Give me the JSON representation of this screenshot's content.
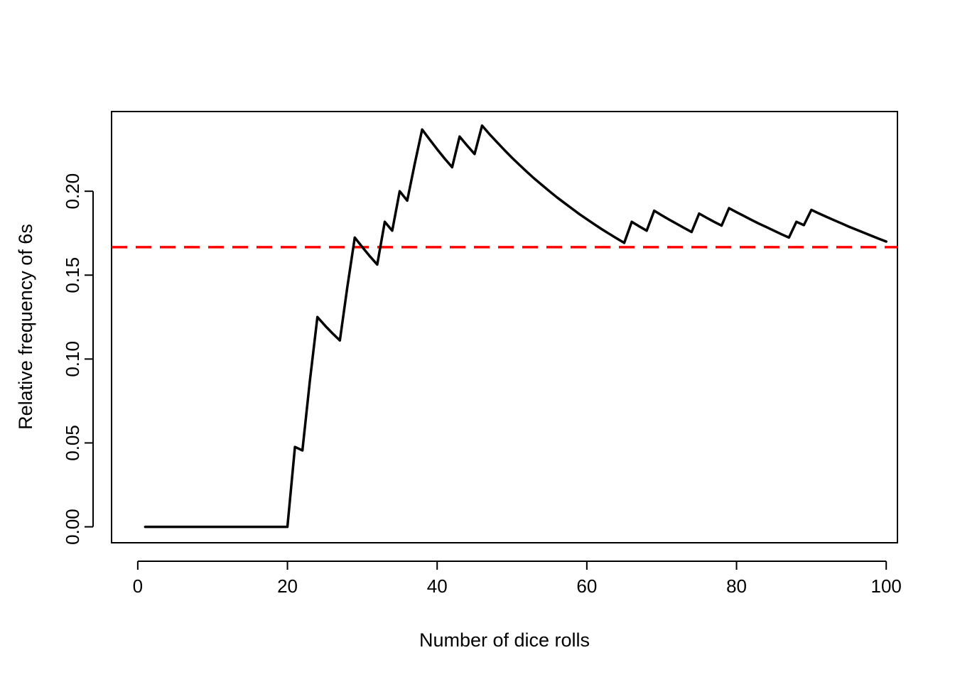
{
  "chart_data": {
    "type": "line",
    "title": "",
    "xlabel": "Number of dice rolls",
    "ylabel": "Relative frequency of 6s",
    "xlim": [
      -3.5,
      101.5
    ],
    "ylim": [
      -0.0095,
      0.2475
    ],
    "x_ticks": [
      0,
      20,
      40,
      60,
      80,
      100
    ],
    "x_tick_labels": [
      "0",
      "20",
      "40",
      "60",
      "80",
      "100"
    ],
    "y_ticks": [
      0.0,
      0.05,
      0.1,
      0.15,
      0.2
    ],
    "y_tick_labels": [
      "0.00",
      "0.05",
      "0.10",
      "0.15",
      "0.20"
    ],
    "grid": false,
    "series": [
      {
        "color": "#000000",
        "x": [
          1,
          20,
          21,
          22,
          23,
          24,
          25,
          26,
          27,
          28,
          29,
          30,
          31,
          32,
          33,
          34,
          35,
          36,
          37,
          38,
          39,
          40,
          41,
          42,
          43,
          44,
          45,
          46,
          47,
          48,
          49,
          50,
          51,
          52,
          53,
          54,
          55,
          56,
          57,
          58,
          59,
          60,
          61,
          62,
          63,
          64,
          65,
          66,
          67,
          68,
          69,
          70,
          71,
          72,
          73,
          74,
          75,
          76,
          77,
          78,
          79,
          80,
          81,
          82,
          83,
          84,
          85,
          86,
          87,
          88,
          89,
          90,
          91,
          92,
          93,
          94,
          95,
          96,
          97,
          98,
          99,
          100
        ],
        "y": [
          0.0,
          0.0,
          0.0476,
          0.0455,
          0.087,
          0.125,
          0.12,
          0.1154,
          0.1111,
          0.1429,
          0.1724,
          0.1667,
          0.1613,
          0.1563,
          0.1818,
          0.1765,
          0.2,
          0.1944,
          0.2162,
          0.2368,
          0.2308,
          0.225,
          0.2195,
          0.2143,
          0.2326,
          0.2273,
          0.2222,
          0.2391,
          0.234,
          0.2292,
          0.2245,
          0.22,
          0.2157,
          0.2115,
          0.2075,
          0.2037,
          0.2,
          0.1964,
          0.193,
          0.1897,
          0.1864,
          0.1833,
          0.1803,
          0.1774,
          0.1746,
          0.1719,
          0.1692,
          0.1818,
          0.1791,
          0.1765,
          0.1884,
          0.1857,
          0.1831,
          0.1806,
          0.1781,
          0.1757,
          0.1867,
          0.1842,
          0.1818,
          0.1795,
          0.1899,
          0.1875,
          0.1852,
          0.1829,
          0.1807,
          0.1786,
          0.1765,
          0.1744,
          0.1724,
          0.1818,
          0.1798,
          0.1889,
          0.1868,
          0.1848,
          0.1828,
          0.1809,
          0.1789,
          0.1771,
          0.1753,
          0.1735,
          0.1717,
          0.17
        ]
      }
    ],
    "reference_line": {
      "y": 0.1667,
      "color": "#ff0000",
      "style": "dashed"
    }
  }
}
